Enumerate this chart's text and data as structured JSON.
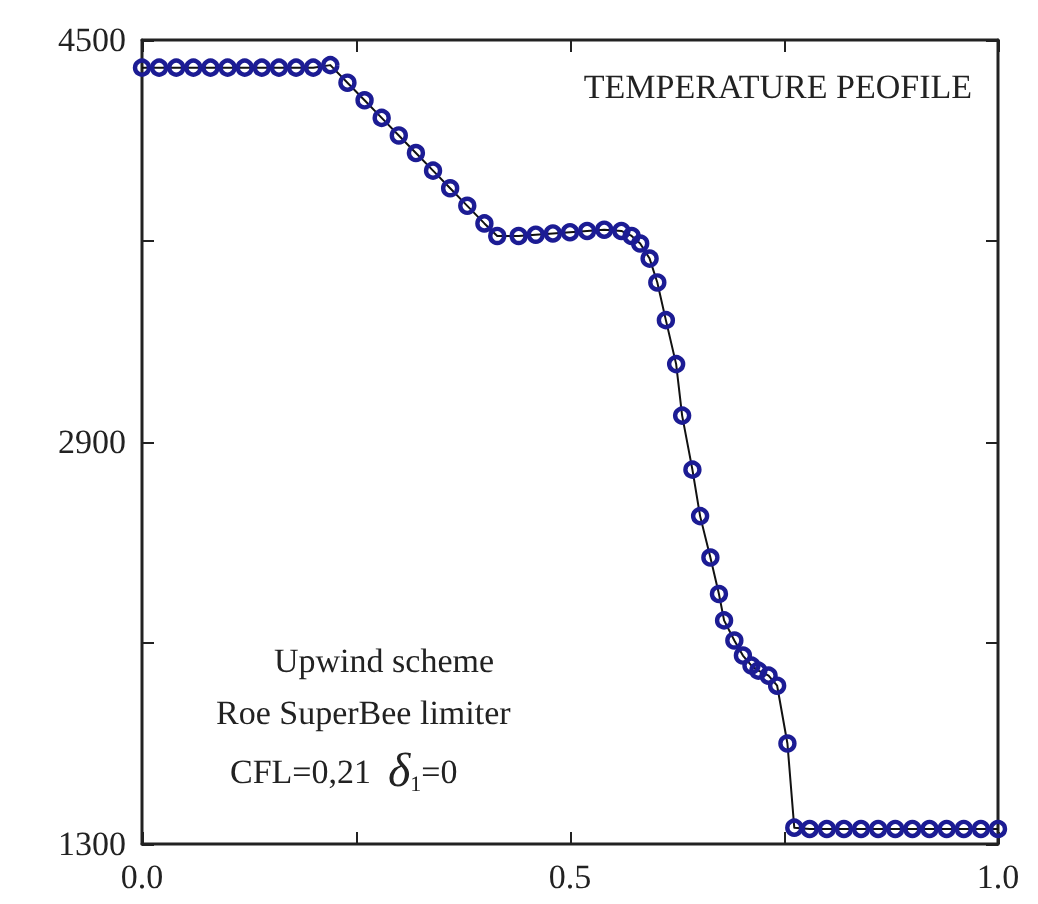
{
  "chart_data": {
    "type": "line",
    "title": "TEMPERATURE PEOFILE",
    "annotations": [
      "Upwind scheme",
      "Roe SuperBee limiter",
      "CFL=0,21  δ$_{1}$=0"
    ],
    "series": [
      {
        "color": "#1c1c94",
        "x": [
          0,
          0.02,
          0.04,
          0.06,
          0.08,
          0.1,
          0.12,
          0.14,
          0.16,
          0.18,
          0.2,
          0.22,
          0.24,
          0.26,
          0.28,
          0.3,
          0.32,
          0.34,
          0.36,
          0.38,
          0.4,
          0.415,
          0.44,
          0.46,
          0.48,
          0.5,
          0.52,
          0.54,
          0.56,
          0.572,
          0.582,
          0.593,
          0.602,
          0.612,
          0.624,
          0.631,
          0.643,
          0.652,
          0.664,
          0.674,
          0.68,
          0.692,
          0.702,
          0.712,
          0.72,
          0.732,
          0.742,
          0.754,
          0.762,
          0.78,
          0.8,
          0.82,
          0.84,
          0.86,
          0.88,
          0.9,
          0.92,
          0.94,
          0.96,
          0.98,
          1.0
        ],
        "values": [
          4390,
          4390,
          4390,
          4390,
          4390,
          4390,
          4390,
          4390,
          4390,
          4390,
          4390,
          4400,
          4330,
          4260,
          4190,
          4120,
          4050,
          3980,
          3910,
          3840,
          3770,
          3720,
          3720,
          3725,
          3730,
          3735,
          3740,
          3745,
          3740,
          3720,
          3690,
          3630,
          3535,
          3385,
          3210,
          3005,
          2790,
          2605,
          2440,
          2295,
          2190,
          2110,
          2050,
          2010,
          1990,
          1970,
          1930,
          1700,
          1365,
          1360,
          1360,
          1360,
          1360,
          1360,
          1360,
          1360,
          1360,
          1360,
          1360,
          1360,
          1360
        ]
      }
    ],
    "xlim": [
      0,
      1
    ],
    "xticks": [
      {
        "value": 0,
        "label": "0.0"
      },
      {
        "value": 0.25,
        "label": null
      },
      {
        "value": 0.5,
        "label": "0.5"
      },
      {
        "value": 0.75,
        "label": null
      },
      {
        "value": 1,
        "label": "1.0"
      }
    ],
    "ylim": [
      1300,
      4500
    ],
    "yticks": [
      1300,
      {
        "value": 2100,
        "label": null
      },
      2900,
      {
        "value": 3700,
        "label": null
      },
      4500
    ],
    "marker": "circle",
    "line_style": "solid",
    "grid": false
  }
}
